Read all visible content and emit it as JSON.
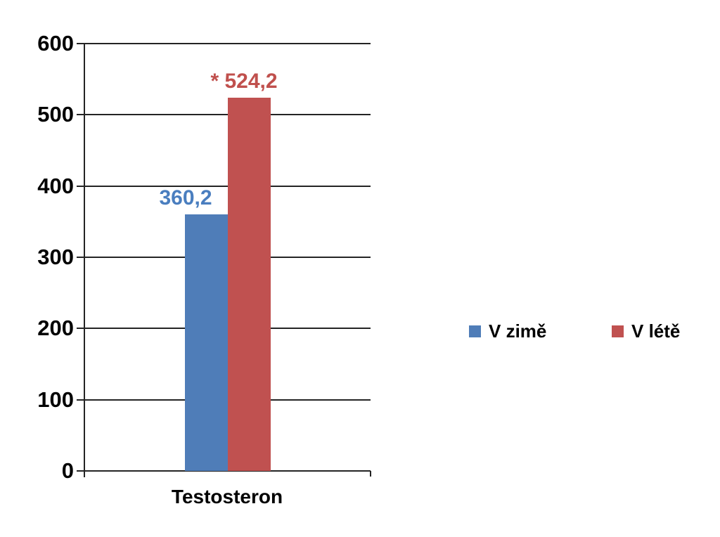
{
  "chart_data": {
    "type": "bar",
    "title": "",
    "xlabel": "",
    "ylabel": "",
    "categories": [
      "Testosteron"
    ],
    "series": [
      {
        "name": "V zimě",
        "values": [
          360.2
        ],
        "data_labels": [
          "360,2"
        ],
        "color": "#4f7db8",
        "label_color": "#4a7ebf"
      },
      {
        "name": "V létě",
        "values": [
          524.2
        ],
        "data_labels": [
          "* 524,2"
        ],
        "color": "#c05150",
        "label_color": "#c0504d"
      }
    ],
    "ylim": [
      0,
      600
    ],
    "yticks": [
      0,
      100,
      200,
      300,
      400,
      500,
      600
    ],
    "grid": true,
    "legend_position": "right-center"
  },
  "colors": {
    "background": "#ffffff",
    "axis": "#242424",
    "text": "#000000"
  }
}
